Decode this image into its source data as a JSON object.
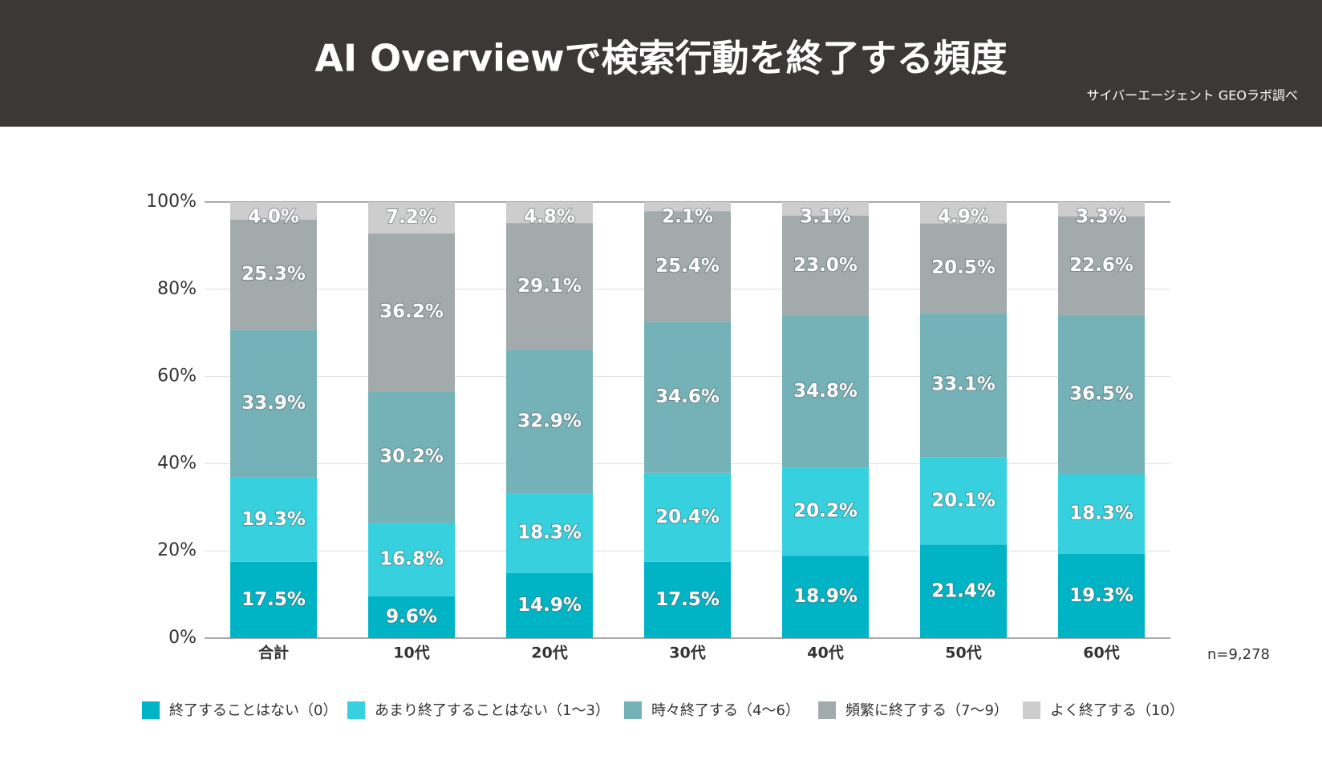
{
  "chart_data": {
    "type": "stacked_bar",
    "title": "AI Overviewで検索行動を終了する頻度",
    "source": "サイバーエージェント GEOラボ調べ",
    "note": "n=9,278",
    "categories": [
      "合計",
      "10代",
      "20代",
      "30代",
      "40代",
      "50代",
      "60代"
    ],
    "series": [
      {
        "name": "終了することはない（0）",
        "color": "#00b3c5",
        "values": [
          17.5,
          9.6,
          14.9,
          17.5,
          18.9,
          21.4,
          19.3
        ],
        "value_labels": [
          "17.5%",
          "9.6%",
          "14.9%",
          "17.5%",
          "18.9%",
          "21.4%",
          "19.3%"
        ]
      },
      {
        "name": "あまり終了することはない（1〜3）",
        "color": "#36d0de",
        "values": [
          19.3,
          16.8,
          18.3,
          20.4,
          20.2,
          20.1,
          18.3
        ],
        "value_labels": [
          "19.3%",
          "16.8%",
          "18.3%",
          "20.4%",
          "20.2%",
          "20.1%",
          "18.3%"
        ]
      },
      {
        "name": "時々終了する（4〜6）",
        "color": "#75b2b8",
        "values": [
          33.9,
          30.2,
          32.9,
          34.6,
          34.8,
          33.1,
          36.5
        ],
        "value_labels": [
          "33.9%",
          "30.2%",
          "32.9%",
          "34.6%",
          "34.8%",
          "33.1%",
          "36.5%"
        ]
      },
      {
        "name": "頻繁に終了する（7〜9）",
        "color": "#a2aaab",
        "values": [
          25.3,
          36.2,
          29.1,
          25.4,
          23.0,
          20.5,
          22.6
        ],
        "value_labels": [
          "25.3%",
          "36.2%",
          "29.1%",
          "25.4%",
          "23.0%",
          "20.5%",
          "22.6%"
        ]
      },
      {
        "name": "よく終了する（10）",
        "color": "#cdcdcd",
        "values": [
          4.0,
          7.2,
          4.8,
          2.1,
          3.1,
          4.9,
          3.3
        ],
        "value_labels": [
          "4.0%",
          "7.2%",
          "4.8%",
          "2.1%",
          "3.1%",
          "4.9%",
          "3.3%"
        ]
      }
    ],
    "ylim": [
      0,
      100
    ],
    "yticks": [
      {
        "value": 0,
        "label": "0%"
      },
      {
        "value": 20,
        "label": "20%"
      },
      {
        "value": 40,
        "label": "40%"
      },
      {
        "value": 60,
        "label": "60%"
      },
      {
        "value": 80,
        "label": "80%"
      },
      {
        "value": 100,
        "label": "100%"
      }
    ],
    "grid": true
  }
}
